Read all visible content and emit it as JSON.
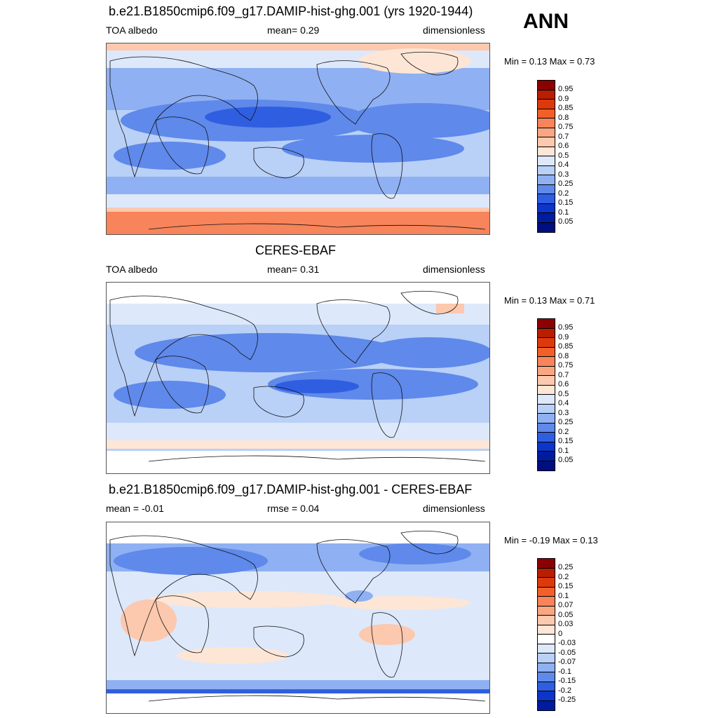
{
  "season": "ANN",
  "panels": [
    {
      "title": "b.e21.B1850cmip6.f09_g17.DAMIP-hist-ghg.001 (yrs 1920-1944)",
      "left_label": "TOA albedo",
      "center_label": "mean=   0.29",
      "right_label": "dimensionless",
      "minmax": "Min =   0.13 Max =   0.73",
      "colorbar_labels": [
        "0.95",
        "0.9",
        "0.85",
        "0.8",
        "0.75",
        "0.7",
        "0.6",
        "0.5",
        "0.4",
        "0.3",
        "0.25",
        "0.2",
        "0.15",
        "0.1",
        "0.05"
      ]
    },
    {
      "title": "CERES-EBAF",
      "left_label": "TOA albedo",
      "center_label": "mean=   0.31",
      "right_label": "dimensionless",
      "minmax": "Min =   0.13 Max =   0.71",
      "colorbar_labels": [
        "0.95",
        "0.9",
        "0.85",
        "0.8",
        "0.75",
        "0.7",
        "0.6",
        "0.5",
        "0.4",
        "0.3",
        "0.25",
        "0.2",
        "0.15",
        "0.1",
        "0.05"
      ]
    },
    {
      "title": "b.e21.B1850cmip6.f09_g17.DAMIP-hist-ghg.001 - CERES-EBAF",
      "left_label": "mean =  -0.01",
      "center_label": "rmse =   0.04",
      "right_label": "dimensionless",
      "minmax": "Min =  -0.19 Max =   0.13",
      "colorbar_labels": [
        "0.25",
        "0.2",
        "0.15",
        "0.1",
        "0.07",
        "0.05",
        "0.03",
        "0",
        "-0.03",
        "-0.05",
        "-0.07",
        "-0.1",
        "-0.15",
        "-0.2",
        "-0.25"
      ]
    }
  ],
  "colors": {
    "sequential": [
      "#8b0000",
      "#b81e00",
      "#dd3a0c",
      "#f2602a",
      "#f7845a",
      "#f9a683",
      "#fcc8ae",
      "#fde6d6",
      "#dde8fa",
      "#b9d0f7",
      "#8fb0f2",
      "#5f89ea",
      "#2f5fe0",
      "#0d35c9",
      "#001c9e",
      "#000e80"
    ],
    "diverging": [
      "#8b0000",
      "#b81e00",
      "#dd3a0c",
      "#f2602a",
      "#f7845a",
      "#f9a683",
      "#fcc8ae",
      "#fde6d6",
      "#ffffff",
      "#dde8fa",
      "#b9d0f7",
      "#8fb0f2",
      "#5f89ea",
      "#2f5fe0",
      "#0d35c9",
      "#001c9e"
    ]
  }
}
